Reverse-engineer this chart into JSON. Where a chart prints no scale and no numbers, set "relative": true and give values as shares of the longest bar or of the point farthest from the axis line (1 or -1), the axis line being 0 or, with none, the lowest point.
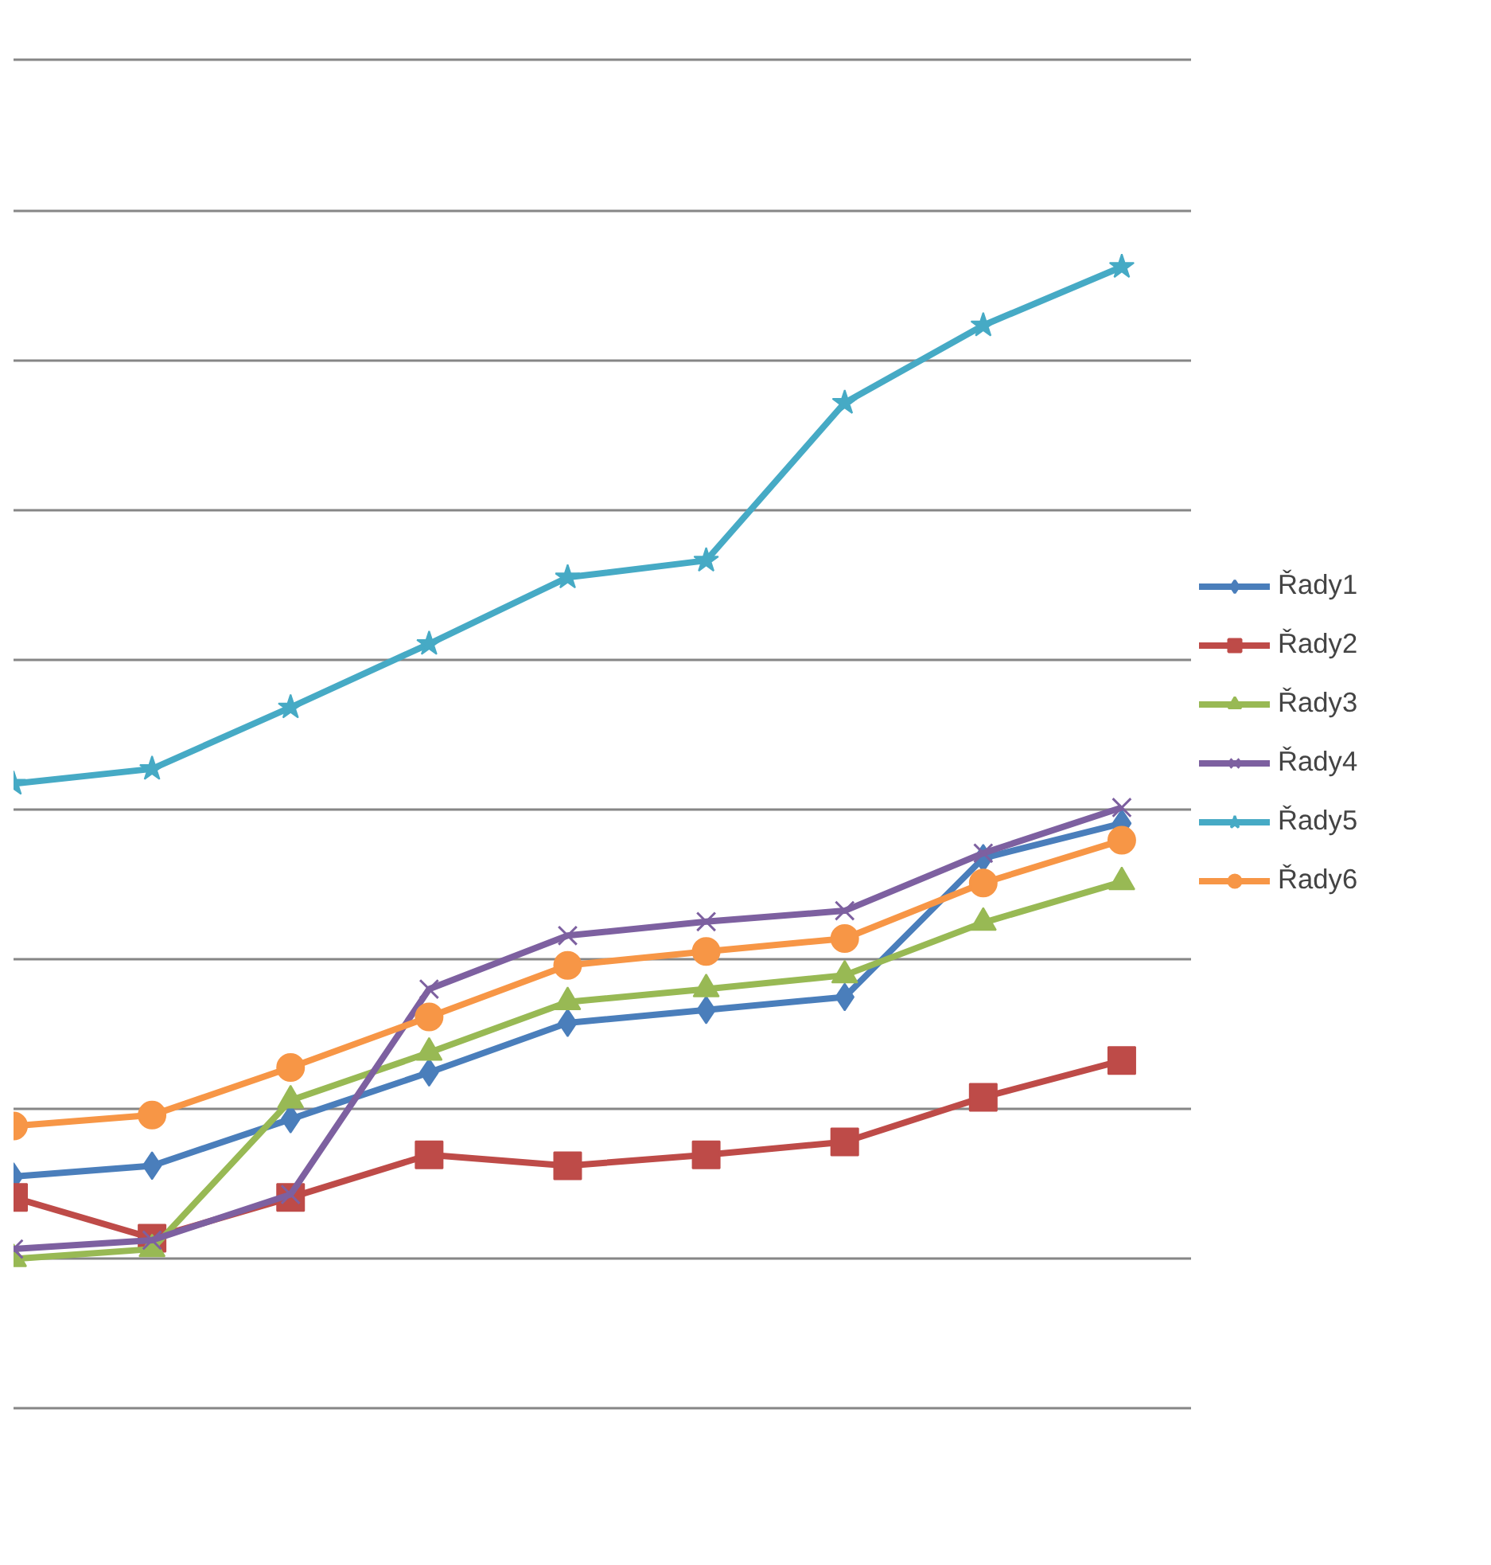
{
  "chart_data": {
    "type": "line",
    "relative": true,
    "categories": [
      null,
      null,
      null,
      null,
      null,
      null,
      null,
      null,
      null
    ],
    "series": [
      {
        "name": "Řady1",
        "color": "#4a7ebb",
        "marker": "diamond",
        "values": [
          0.083,
          0.094,
          0.141,
          0.188,
          0.238,
          0.251,
          0.264,
          0.404,
          0.439
        ]
      },
      {
        "name": "Řady2",
        "color": "#be4b48",
        "marker": "square",
        "values": [
          0.062,
          0.021,
          0.062,
          0.105,
          0.094,
          0.105,
          0.118,
          0.163,
          0.2
        ]
      },
      {
        "name": "Řady3",
        "color": "#98b954",
        "marker": "triangle",
        "values": [
          0,
          0.01,
          0.16,
          0.208,
          0.259,
          0.272,
          0.286,
          0.339,
          0.38
        ]
      },
      {
        "name": "Řady4",
        "color": "#7d60a0",
        "marker": "cross",
        "values": [
          0.01,
          0.019,
          0.065,
          0.272,
          0.326,
          0.34,
          0.351,
          0.409,
          0.455
        ]
      },
      {
        "name": "Řady5",
        "color": "#46aac5",
        "marker": "star",
        "values": [
          0.479,
          0.494,
          0.556,
          0.62,
          0.687,
          0.704,
          0.863,
          0.941,
          1
        ]
      },
      {
        "name": "Řady6",
        "color": "#f79646",
        "marker": "circle",
        "values": [
          0.134,
          0.145,
          0.193,
          0.244,
          0.296,
          0.31,
          0.323,
          0.379,
          0.422
        ]
      }
    ],
    "grid": "y",
    "legend": "right",
    "line_style": "solid"
  }
}
